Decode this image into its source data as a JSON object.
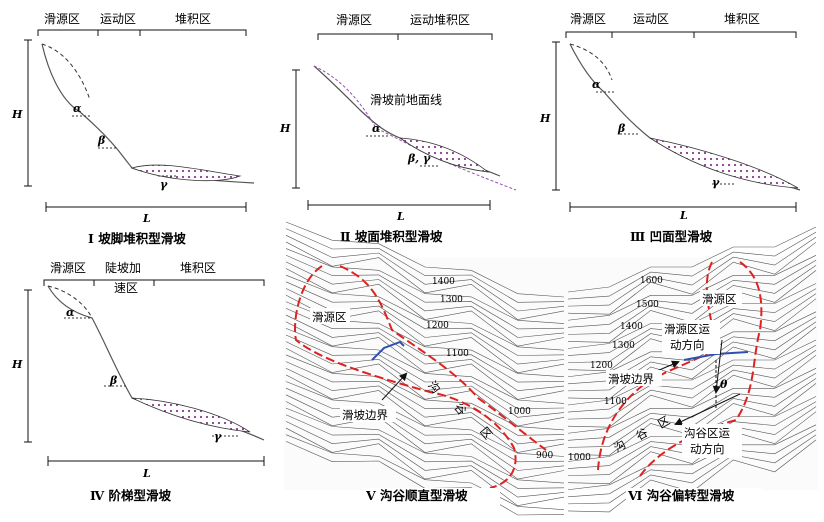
{
  "panels": {
    "p1": {
      "zones": [
        "滑源区",
        "运动区",
        "堆积区"
      ],
      "h": "H",
      "l": "L",
      "alpha": "α",
      "beta": "β",
      "gamma": "γ",
      "caption": "Ⅰ 坡脚堆积型滑坡"
    },
    "p2": {
      "zones": [
        "滑源区",
        "运动堆积区"
      ],
      "h": "H",
      "l": "L",
      "alpha": "α",
      "beta_gamma": "β, γ",
      "note": "滑坡前地面线",
      "caption": "Ⅱ 坡面堆积型滑坡"
    },
    "p3": {
      "zones": [
        "滑源区",
        "运动区",
        "堆积区"
      ],
      "h": "H",
      "l": "L",
      "alpha": "α",
      "beta": "β",
      "gamma": "γ",
      "caption": "Ⅲ 凹面型滑坡"
    },
    "p4": {
      "zones": [
        "滑源区",
        "陡坡加",
        "速区",
        "堆积区"
      ],
      "h": "H",
      "l": "L",
      "alpha": "α",
      "beta": "β",
      "gamma": "γ",
      "caption": "Ⅳ 阶梯型滑坡"
    },
    "p5": {
      "contours": [
        "1400",
        "1300",
        "1200",
        "1100",
        "1000",
        "900"
      ],
      "source": "滑源区",
      "boundary": "滑坡边界",
      "gully_chars": [
        "沟",
        "谷",
        "区"
      ],
      "caption": "Ⅴ 沟谷顺直型滑坡"
    },
    "p6": {
      "contours": [
        "1600",
        "1500",
        "1400",
        "1300",
        "1200",
        "1100",
        "1000"
      ],
      "source": "滑源区",
      "source_dir_1": "滑源区运",
      "source_dir_2": "动方向",
      "boundary": "滑坡边界",
      "theta": "θ",
      "gully_chars": [
        "沟",
        "谷",
        "区"
      ],
      "gully_dir_1": "沟谷区运",
      "gully_dir_2": "动方向",
      "caption": "Ⅵ 沟谷偏转型滑坡"
    }
  }
}
